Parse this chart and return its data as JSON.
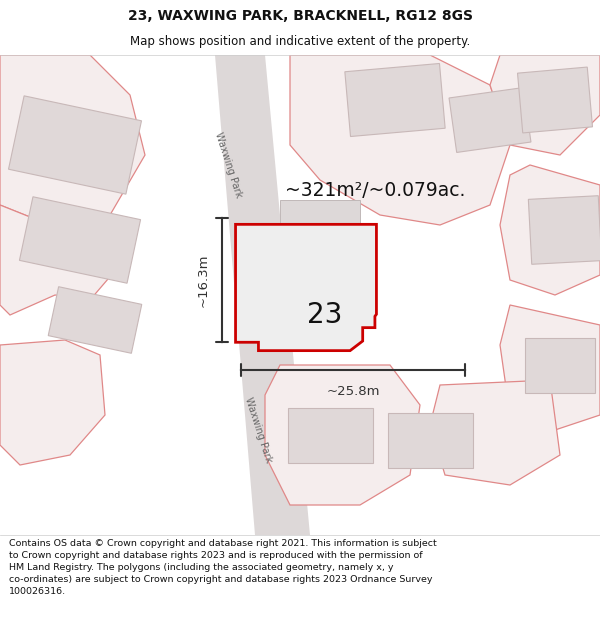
{
  "title": "23, WAXWING PARK, BRACKNELL, RG12 8GS",
  "subtitle": "Map shows position and indicative extent of the property.",
  "footer": "Contains OS data © Crown copyright and database right 2021. This information is subject to Crown copyright and database rights 2023 and is reproduced with the permission of HM Land Registry. The polygons (including the associated geometry, namely x, y co-ordinates) are subject to Crown copyright and database rights 2023 Ordnance Survey 100026316.",
  "area_label": "~321m²/~0.079ac.",
  "plot_number": "23",
  "dim_width": "~25.8m",
  "dim_height": "~16.3m",
  "street_name": "Waxwing Park",
  "title_fontsize": 10,
  "subtitle_fontsize": 8.5,
  "footer_fontsize": 6.8,
  "plot_edge_color": "#cc0000",
  "plot_edge_width": 2.0,
  "plot_fill": "#eeeeee",
  "dim_color": "#333333",
  "road_fill": "#ddd8d8",
  "road_edge": "none",
  "bldg_fill": "#e0d8d8",
  "bldg_edge": "#c8b8b8",
  "outline_fill": "#f5eded",
  "outline_edge": "#e08888",
  "map_bg": "#f8f4f4"
}
